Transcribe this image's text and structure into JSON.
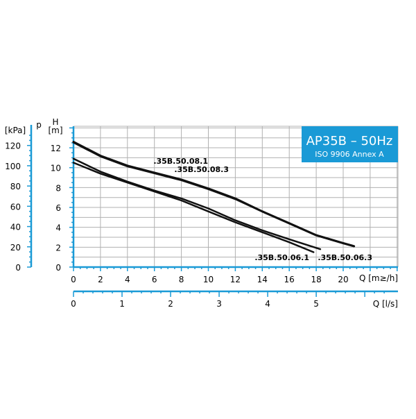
{
  "chart_data": {
    "type": "line",
    "title": "AP35B – 50Hz",
    "subtitle": "ISO 9906 Annex A",
    "xlabel": "Q [m≥/h]",
    "x2label": "Q [l/s]",
    "ylabel": "H",
    "ylabel_unit": "[m]",
    "y2label": "p",
    "y2label_unit": "[kPa]",
    "xlim": [
      0,
      24
    ],
    "ylim": [
      0,
      14
    ],
    "x_ticks": [
      "0",
      "2",
      "4",
      "6",
      "8",
      "10",
      "12",
      "14",
      "16",
      "18",
      "20"
    ],
    "x2_ticks": [
      "0",
      "1",
      "2",
      "3",
      "4",
      "5"
    ],
    "y_ticks": [
      "0",
      "2",
      "4",
      "6",
      "8",
      "10",
      "12"
    ],
    "y2_ticks": [
      "0",
      "20",
      "40",
      "60",
      "80",
      "100",
      "120"
    ],
    "grid": true,
    "colors": {
      "axis": "#1a9ad6",
      "grid": "#b0b0b0",
      "line": "#111111",
      "title_bg": "#1a9ad6"
    },
    "series": [
      {
        "name": ".35B.50.08.1",
        "x": [
          0,
          2,
          4,
          6,
          8,
          10,
          12,
          14,
          16,
          18,
          20,
          20.8
        ],
        "y": [
          12.6,
          11.2,
          10.2,
          9.5,
          8.8,
          7.9,
          6.9,
          5.6,
          4.4,
          3.2,
          2.4,
          2.1
        ]
      },
      {
        "name": ".35B.50.08.3",
        "x": [
          0,
          2,
          4,
          6,
          8,
          10,
          12,
          14,
          16,
          18,
          20,
          20.8
        ],
        "y": [
          12.55,
          11.15,
          10.15,
          9.45,
          8.75,
          7.85,
          6.85,
          5.6,
          4.4,
          3.2,
          2.4,
          2.1
        ]
      },
      {
        "name": ".35B.50.06.1",
        "x": [
          0,
          2,
          4,
          6,
          8,
          10,
          12,
          14,
          16,
          17.8
        ],
        "y": [
          10.5,
          9.4,
          8.5,
          7.6,
          6.7,
          5.6,
          4.5,
          3.5,
          2.5,
          1.5
        ]
      },
      {
        "name": ".35B.50.06.3",
        "x": [
          0,
          2,
          4,
          6,
          8,
          10,
          12,
          14,
          16,
          18.3
        ],
        "y": [
          10.9,
          9.6,
          8.6,
          7.7,
          6.9,
          5.9,
          4.7,
          3.7,
          2.8,
          1.8
        ]
      }
    ]
  }
}
